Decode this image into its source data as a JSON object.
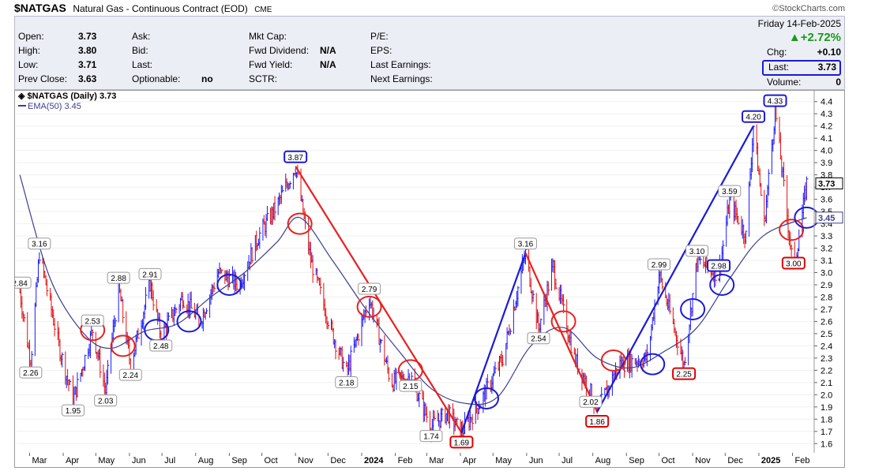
{
  "header": {
    "symbol": "$NATGAS",
    "description": "Natural Gas - Continuous Contract (EOD)",
    "exchange": "CME",
    "brand": "©StockCharts.com"
  },
  "info": {
    "open_label": "Open:",
    "open": "3.73",
    "high_label": "High:",
    "high": "3.80",
    "low_label": "Low:",
    "low": "3.71",
    "prev_label": "Prev Close:",
    "prev": "3.63",
    "ask_label": "Ask:",
    "bid_label": "Bid:",
    "last_label2": "Last:",
    "optionable_label": "Optionable:",
    "optionable": "no",
    "mktcap_label": "Mkt Cap:",
    "fwddiv_label": "Fwd Dividend:",
    "fwddiv": "N/A",
    "fwdyield_label": "Fwd Yield:",
    "fwdyield": "N/A",
    "sctr_label": "SCTR:",
    "pe_label": "P/E:",
    "eps_label": "EPS:",
    "lastearn_label": "Last Earnings:",
    "nextearn_label": "Next Earnings:",
    "date": "Friday 14-Feb-2025",
    "pct_change": "▲+2.72%",
    "chg_label": "Chg:",
    "chg": "+0.10",
    "last_label": "Last:",
    "last": "3.73",
    "volume_label": "Volume:",
    "volume": "0"
  },
  "legend": {
    "price_label": "$NATGAS (Daily) 3.73",
    "ema_label": "EMA(50) 3.45"
  },
  "colors": {
    "price_up": "#1a1aff",
    "price_down": "#e01010",
    "ema": "#3a3f8f",
    "trend_up": "#1a1ad8",
    "trend_down": "#e82020",
    "panel_bg": "#eceef5"
  },
  "chart_data": {
    "type": "line",
    "title": "$NATGAS (Daily) 3.73",
    "ylim": [
      1.55,
      4.45
    ],
    "y_ticks": [
      "1.6",
      "1.7",
      "1.8",
      "1.9",
      "2.0",
      "2.1",
      "2.2",
      "2.3",
      "2.4",
      "2.5",
      "2.6",
      "2.7",
      "2.8",
      "2.9",
      "3.0",
      "3.1",
      "3.2",
      "3.3",
      "3.4",
      "3.5",
      "3.6",
      "3.7",
      "3.8",
      "3.9",
      "4.0",
      "4.1",
      "4.2",
      "4.3",
      "4.4"
    ],
    "x_labels": [
      "Mar",
      "Apr",
      "May",
      "Jun",
      "Jul",
      "Aug",
      "Sep",
      "Oct",
      "Nov",
      "Dec",
      "2024",
      "Feb",
      "Mar",
      "Apr",
      "May",
      "Jun",
      "Jul",
      "Aug",
      "Sep",
      "Oct",
      "Nov",
      "Dec",
      "2025",
      "Feb"
    ],
    "price_key_points": [
      {
        "date": "2023-02-20",
        "value": 2.84
      },
      {
        "date": "2023-03-02",
        "value": 2.26
      },
      {
        "date": "2023-03-10",
        "value": 3.16
      },
      {
        "date": "2023-03-28",
        "value": 2.4
      },
      {
        "date": "2023-04-10",
        "value": 1.95
      },
      {
        "date": "2023-04-28",
        "value": 2.53
      },
      {
        "date": "2023-05-10",
        "value": 2.03
      },
      {
        "date": "2023-05-22",
        "value": 2.88
      },
      {
        "date": "2023-06-02",
        "value": 2.24
      },
      {
        "date": "2023-06-20",
        "value": 2.91
      },
      {
        "date": "2023-06-30",
        "value": 2.48
      },
      {
        "date": "2023-07-20",
        "value": 2.8
      },
      {
        "date": "2023-08-05",
        "value": 2.6
      },
      {
        "date": "2023-08-22",
        "value": 3.0
      },
      {
        "date": "2023-09-10",
        "value": 2.9
      },
      {
        "date": "2023-09-28",
        "value": 3.3
      },
      {
        "date": "2023-10-15",
        "value": 3.55
      },
      {
        "date": "2023-11-01",
        "value": 3.87
      },
      {
        "date": "2023-11-15",
        "value": 3.1
      },
      {
        "date": "2023-12-05",
        "value": 2.5
      },
      {
        "date": "2023-12-18",
        "value": 2.18
      },
      {
        "date": "2024-01-08",
        "value": 2.79
      },
      {
        "date": "2024-01-28",
        "value": 2.1
      },
      {
        "date": "2024-02-15",
        "value": 2.15
      },
      {
        "date": "2024-03-05",
        "value": 1.74
      },
      {
        "date": "2024-03-20",
        "value": 1.85
      },
      {
        "date": "2024-04-02",
        "value": 1.69
      },
      {
        "date": "2024-04-20",
        "value": 1.95
      },
      {
        "date": "2024-05-10",
        "value": 2.3
      },
      {
        "date": "2024-05-31",
        "value": 3.16
      },
      {
        "date": "2024-06-12",
        "value": 2.54
      },
      {
        "date": "2024-06-25",
        "value": 3.05
      },
      {
        "date": "2024-07-15",
        "value": 2.3
      },
      {
        "date": "2024-07-30",
        "value": 2.02
      },
      {
        "date": "2024-08-05",
        "value": 1.86
      },
      {
        "date": "2024-08-25",
        "value": 2.25
      },
      {
        "date": "2024-09-20",
        "value": 2.3
      },
      {
        "date": "2024-10-01",
        "value": 2.99
      },
      {
        "date": "2024-10-24",
        "value": 2.25
      },
      {
        "date": "2024-11-05",
        "value": 3.1
      },
      {
        "date": "2024-11-25",
        "value": 2.98
      },
      {
        "date": "2024-12-05",
        "value": 3.59
      },
      {
        "date": "2024-12-20",
        "value": 3.3
      },
      {
        "date": "2024-12-27",
        "value": 4.2
      },
      {
        "date": "2025-01-06",
        "value": 3.4
      },
      {
        "date": "2025-01-16",
        "value": 4.33
      },
      {
        "date": "2025-02-02",
        "value": 3.0
      },
      {
        "date": "2025-02-14",
        "value": 3.73
      }
    ],
    "ema_key_points": [
      {
        "date": "2023-02-20",
        "value": 3.8
      },
      {
        "date": "2023-03-20",
        "value": 2.95
      },
      {
        "date": "2023-04-20",
        "value": 2.5
      },
      {
        "date": "2023-05-15",
        "value": 2.38
      },
      {
        "date": "2023-06-15",
        "value": 2.52
      },
      {
        "date": "2023-07-15",
        "value": 2.58
      },
      {
        "date": "2023-08-15",
        "value": 2.8
      },
      {
        "date": "2023-09-15",
        "value": 3.0
      },
      {
        "date": "2023-10-15",
        "value": 3.25
      },
      {
        "date": "2023-11-05",
        "value": 3.45
      },
      {
        "date": "2023-12-05",
        "value": 3.1
      },
      {
        "date": "2024-01-05",
        "value": 2.7
      },
      {
        "date": "2024-02-05",
        "value": 2.35
      },
      {
        "date": "2024-03-05",
        "value": 2.05
      },
      {
        "date": "2024-04-05",
        "value": 1.93
      },
      {
        "date": "2024-05-05",
        "value": 1.98
      },
      {
        "date": "2024-06-05",
        "value": 2.4
      },
      {
        "date": "2024-07-05",
        "value": 2.55
      },
      {
        "date": "2024-08-05",
        "value": 2.3
      },
      {
        "date": "2024-09-05",
        "value": 2.22
      },
      {
        "date": "2024-10-05",
        "value": 2.35
      },
      {
        "date": "2024-11-05",
        "value": 2.55
      },
      {
        "date": "2024-12-05",
        "value": 2.95
      },
      {
        "date": "2025-01-05",
        "value": 3.3
      },
      {
        "date": "2025-02-14",
        "value": 3.45
      }
    ],
    "annotations": [
      {
        "text": "2.84",
        "color": "plain",
        "date": "2023-02-20",
        "value": 2.84
      },
      {
        "text": "2.26",
        "color": "plain",
        "date": "2023-03-02",
        "value": 2.26
      },
      {
        "text": "3.16",
        "color": "plain",
        "date": "2023-03-10",
        "value": 3.16
      },
      {
        "text": "1.95",
        "color": "plain",
        "date": "2023-04-10",
        "value": 1.95
      },
      {
        "text": "2.53",
        "color": "plain",
        "date": "2023-04-28",
        "value": 2.53
      },
      {
        "text": "2.03",
        "color": "plain",
        "date": "2023-05-10",
        "value": 2.03
      },
      {
        "text": "2.88",
        "color": "plain",
        "date": "2023-05-22",
        "value": 2.88
      },
      {
        "text": "2.24",
        "color": "plain",
        "date": "2023-06-02",
        "value": 2.24
      },
      {
        "text": "2.91",
        "color": "plain",
        "date": "2023-06-20",
        "value": 2.91
      },
      {
        "text": "2.48",
        "color": "plain",
        "date": "2023-06-30",
        "value": 2.48
      },
      {
        "text": "3.87",
        "color": "blue",
        "date": "2023-11-01",
        "value": 3.87
      },
      {
        "text": "2.79",
        "color": "plain",
        "date": "2024-01-08",
        "value": 2.79
      },
      {
        "text": "2.18",
        "color": "plain",
        "date": "2023-12-18",
        "value": 2.18
      },
      {
        "text": "2.15",
        "color": "plain",
        "date": "2024-02-15",
        "value": 2.15
      },
      {
        "text": "1.74",
        "color": "plain",
        "date": "2024-03-05",
        "value": 1.74
      },
      {
        "text": "1.69",
        "color": "red",
        "date": "2024-04-02",
        "value": 1.69
      },
      {
        "text": "3.16",
        "color": "plain",
        "date": "2024-05-31",
        "value": 3.16
      },
      {
        "text": "2.54",
        "color": "plain",
        "date": "2024-06-12",
        "value": 2.54
      },
      {
        "text": "2.02",
        "color": "plain",
        "date": "2024-07-30",
        "value": 2.02
      },
      {
        "text": "1.86",
        "color": "red",
        "date": "2024-08-05",
        "value": 1.86
      },
      {
        "text": "2.99",
        "color": "plain",
        "date": "2024-10-01",
        "value": 2.99
      },
      {
        "text": "2.25",
        "color": "red",
        "date": "2024-10-24",
        "value": 2.25
      },
      {
        "text": "3.10",
        "color": "plain",
        "date": "2024-11-05",
        "value": 3.1
      },
      {
        "text": "2.98",
        "color": "blue",
        "date": "2024-11-25",
        "value": 2.98
      },
      {
        "text": "3.59",
        "color": "plain",
        "date": "2024-12-05",
        "value": 3.59
      },
      {
        "text": "4.20",
        "color": "blue",
        "date": "2024-12-27",
        "value": 4.2
      },
      {
        "text": "4.33",
        "color": "blue",
        "date": "2025-01-16",
        "value": 4.33
      },
      {
        "text": "3.00",
        "color": "red",
        "date": "2025-02-02",
        "value": 3.0
      }
    ],
    "trendlines": [
      {
        "color": "red",
        "from": {
          "date": "2023-11-01",
          "value": 3.87
        },
        "to": {
          "date": "2024-04-02",
          "value": 1.69
        }
      },
      {
        "color": "blue",
        "from": {
          "date": "2024-04-02",
          "value": 1.69
        },
        "to": {
          "date": "2024-05-31",
          "value": 3.16
        }
      },
      {
        "color": "red",
        "from": {
          "date": "2024-05-31",
          "value": 3.16
        },
        "to": {
          "date": "2024-08-05",
          "value": 1.86
        }
      },
      {
        "color": "blue",
        "from": {
          "date": "2024-08-05",
          "value": 1.86
        },
        "to": {
          "date": "2024-12-27",
          "value": 4.2
        }
      }
    ],
    "ema_circles": [
      {
        "color": "red",
        "date": "2023-04-28",
        "value": 2.53
      },
      {
        "color": "red",
        "date": "2023-05-26",
        "value": 2.4
      },
      {
        "color": "blue",
        "date": "2023-06-26",
        "value": 2.53
      },
      {
        "color": "blue",
        "date": "2023-07-26",
        "value": 2.6
      },
      {
        "color": "blue",
        "date": "2023-09-01",
        "value": 2.9
      },
      {
        "color": "red",
        "date": "2023-11-05",
        "value": 3.4
      },
      {
        "color": "red",
        "date": "2024-01-08",
        "value": 2.72
      },
      {
        "color": "red",
        "date": "2024-02-15",
        "value": 2.2
      },
      {
        "color": "blue",
        "date": "2024-04-25",
        "value": 1.97
      },
      {
        "color": "red",
        "date": "2024-07-05",
        "value": 2.6
      },
      {
        "color": "red",
        "date": "2024-08-20",
        "value": 2.28
      },
      {
        "color": "blue",
        "date": "2024-09-25",
        "value": 2.25
      },
      {
        "color": "blue",
        "date": "2024-11-01",
        "value": 2.7
      },
      {
        "color": "blue",
        "date": "2024-11-28",
        "value": 2.9
      },
      {
        "color": "red",
        "date": "2025-01-31",
        "value": 3.35
      },
      {
        "color": "blue",
        "date": "2025-02-14",
        "value": 3.45
      }
    ],
    "last_value": "3.73",
    "ema_value": "3.45"
  }
}
